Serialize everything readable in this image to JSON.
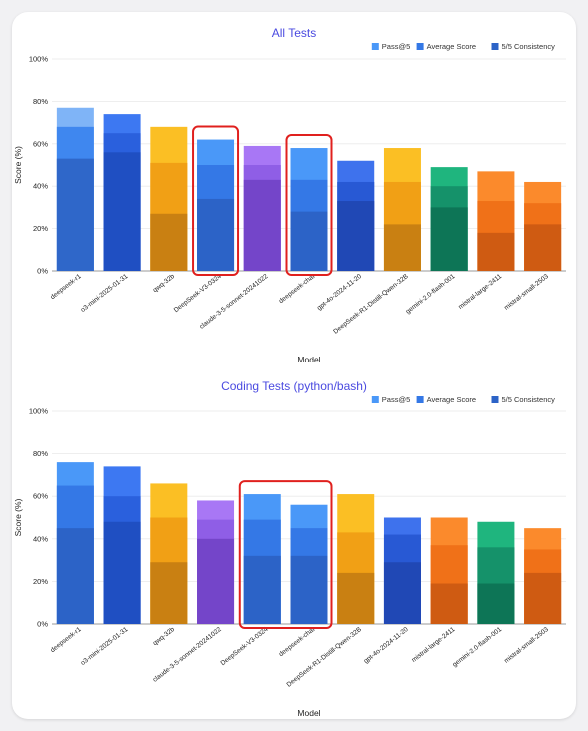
{
  "chart_data": [
    {
      "type": "bar",
      "title": "All Tests",
      "xlabel": "Model",
      "ylabel": "Score (%)",
      "ylim": [
        0,
        100
      ],
      "ytick_labels": [
        "0%",
        "20%",
        "40%",
        "60%",
        "80%",
        "100%"
      ],
      "legend": [
        "Pass@5",
        "Average Score",
        "5/5 Consistency"
      ],
      "legend_position": "top-right",
      "categories": [
        "deepseek-r1",
        "o3-mini-2025-01-31",
        "qwq-32b",
        "DeepSeek-V3-0324",
        "claude-3-5-sonnet-20241022",
        "deepseek-chat",
        "gpt-4o-2024-11-20",
        "DeepSeek-R1-Distill-Qwen-32B",
        "gemini-2.0-flash-001",
        "mistral-large-2411",
        "mistral-small-2503"
      ],
      "series": [
        {
          "name": "Pass@5",
          "values": [
            77,
            74,
            68,
            62,
            59,
            58,
            52,
            58,
            49,
            47,
            42
          ]
        },
        {
          "name": "Average Score",
          "values": [
            68,
            65,
            51,
            50,
            50,
            43,
            42,
            42,
            40,
            33,
            32
          ]
        },
        {
          "name": "5/5 Consistency",
          "values": [
            53,
            56,
            27,
            34,
            43,
            28,
            33,
            22,
            30,
            18,
            22
          ]
        }
      ],
      "colors": [
        [
          "#7fb4f7",
          "#3f87ef",
          "#2f67c9"
        ],
        [
          "#3d78f2",
          "#2a60dd",
          "#1f4fc2"
        ],
        [
          "#fbbf24",
          "#f1a015",
          "#c98012"
        ],
        [
          "#4a98f8",
          "#3478e6",
          "#2c63c7"
        ],
        [
          "#a877f5",
          "#8f5ee6",
          "#7445c9"
        ],
        [
          "#4a98f8",
          "#3478e6",
          "#2c63c7"
        ],
        [
          "#3e72ed",
          "#2859d4",
          "#2048b5"
        ],
        [
          "#fbbf24",
          "#f1a015",
          "#c98012"
        ],
        [
          "#1fb57e",
          "#15926a",
          "#0d7556"
        ],
        [
          "#fb8a2c",
          "#f07118",
          "#cf5b12"
        ],
        [
          "#fb8a2c",
          "#f07118",
          "#cf5b12"
        ]
      ],
      "highlighted": [
        "DeepSeek-V3-0324",
        "deepseek-chat"
      ]
    },
    {
      "type": "bar",
      "title": "Coding Tests (python/bash)",
      "xlabel": "Model",
      "ylabel": "Score (%)",
      "ylim": [
        0,
        100
      ],
      "ytick_labels": [
        "0%",
        "20%",
        "40%",
        "60%",
        "80%",
        "100%"
      ],
      "legend": [
        "Pass@5",
        "Average Score",
        "5/5 Consistency"
      ],
      "legend_position": "top-right",
      "categories": [
        "deepseek-r1",
        "o3-mini-2025-01-31",
        "qwq-32b",
        "claude-3-5-sonnet-20241022",
        "DeepSeek-V3-0324",
        "deepseek-chat",
        "DeepSeek-R1-Distill-Qwen-32B",
        "gpt-4o-2024-11-20",
        "mistral-large-2411",
        "gemini-2.0-flash-001",
        "mistral-small-2503"
      ],
      "series": [
        {
          "name": "Pass@5",
          "values": [
            76,
            74,
            66,
            58,
            61,
            56,
            61,
            50,
            50,
            48,
            45
          ]
        },
        {
          "name": "Average Score",
          "values": [
            65,
            60,
            50,
            49,
            49,
            45,
            43,
            42,
            37,
            36,
            35
          ]
        },
        {
          "name": "5/5 Consistency",
          "values": [
            45,
            48,
            29,
            40,
            32,
            32,
            24,
            29,
            19,
            19,
            24
          ]
        }
      ],
      "colors": [
        [
          "#4a98f8",
          "#3478e6",
          "#2c63c7"
        ],
        [
          "#3d78f2",
          "#2a60dd",
          "#1f4fc2"
        ],
        [
          "#fbbf24",
          "#f1a015",
          "#c98012"
        ],
        [
          "#a877f5",
          "#8f5ee6",
          "#7445c9"
        ],
        [
          "#4a98f8",
          "#3478e6",
          "#2c63c7"
        ],
        [
          "#4a98f8",
          "#3478e6",
          "#2c63c7"
        ],
        [
          "#fbbf24",
          "#f1a015",
          "#c98012"
        ],
        [
          "#3e72ed",
          "#2859d4",
          "#2048b5"
        ],
        [
          "#fb8a2c",
          "#f07118",
          "#cf5b12"
        ],
        [
          "#1fb57e",
          "#15926a",
          "#0d7556"
        ],
        [
          "#fb8a2c",
          "#f07118",
          "#cf5b12"
        ]
      ],
      "highlighted": [
        "DeepSeek-V3-0324",
        "deepseek-chat"
      ]
    }
  ],
  "legend_colors": [
    "#4a98f8",
    "#3478e6",
    "#2c63c7"
  ],
  "highlight_color": "#e0201e"
}
